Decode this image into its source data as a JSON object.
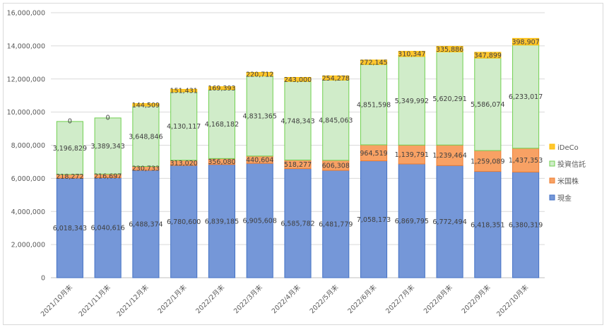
{
  "chart_data": {
    "type": "bar",
    "stacked": true,
    "title": "",
    "xlabel": "",
    "ylabel": "",
    "ylim": [
      0,
      16000000
    ],
    "yticks": [
      0,
      2000000,
      4000000,
      6000000,
      8000000,
      10000000,
      12000000,
      14000000,
      16000000
    ],
    "ytick_labels": [
      "0",
      "2,000,000",
      "4,000,000",
      "6,000,000",
      "8,000,000",
      "10,000,000",
      "12,000,000",
      "14,000,000",
      "16,000,000"
    ],
    "grid": true,
    "legend_position": "right",
    "categories": [
      "2021/10月末",
      "2021/11月末",
      "2021/12月末",
      "2022/1月末",
      "2022/2月末",
      "2022/3月末",
      "2022/4月末",
      "2022/5月末",
      "2022/6月末",
      "2022/7月末",
      "2022/8月末",
      "2022/9月末",
      "2022/10月末"
    ],
    "series": [
      {
        "name": "現金",
        "color": "#7597d8",
        "border": "#4472c4",
        "values": [
          6018343,
          6040616,
          6488374,
          6780600,
          6839185,
          6905608,
          6585782,
          6481779,
          7058173,
          6869795,
          6772494,
          6418351,
          6380319
        ]
      },
      {
        "name": "米国株",
        "color": "#f8a164",
        "border": "#ed7d31",
        "values": [
          218272,
          216697,
          230733,
          313020,
          356080,
          440604,
          518277,
          606308,
          964519,
          1139791,
          1239464,
          1259089,
          1437353
        ]
      },
      {
        "name": "投資信託",
        "color": "#d0ecc9",
        "border": "#70d050",
        "values": [
          3196829,
          3389343,
          3648846,
          4130117,
          4168182,
          4831365,
          4748343,
          4845063,
          4851598,
          5349992,
          5620291,
          5586074,
          6233017
        ]
      },
      {
        "name": "iDeCo",
        "color": "#ffc62f",
        "border": "#ffc000",
        "values": [
          0,
          0,
          144509,
          151431,
          169393,
          220712,
          243000,
          254278,
          272145,
          310347,
          335886,
          347899,
          398907
        ]
      }
    ],
    "legend_order": [
      "iDeCo",
      "投資信託",
      "米国株",
      "現金"
    ]
  }
}
